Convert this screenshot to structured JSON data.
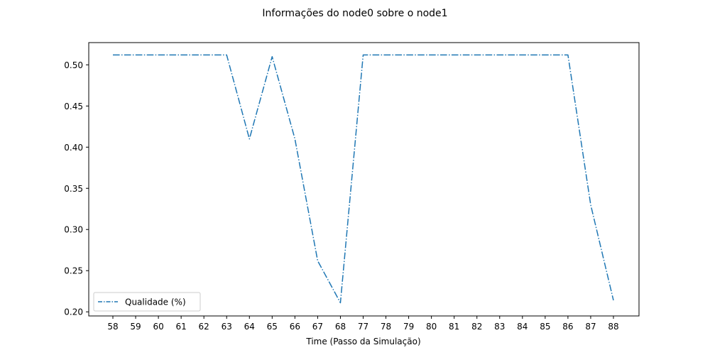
{
  "chart_data": {
    "type": "line",
    "title": "Informações do node0 sobre o node1",
    "xlabel": "Time (Passo da Simulação)",
    "ylabel": "",
    "categories": [
      "58",
      "59",
      "60",
      "61",
      "62",
      "63",
      "64",
      "65",
      "66",
      "67",
      "68",
      "77",
      "78",
      "79",
      "80",
      "81",
      "82",
      "83",
      "84",
      "85",
      "86",
      "87",
      "88"
    ],
    "series": [
      {
        "name": "Qualidade (%)",
        "color": "#1f77b4",
        "values": [
          0.512,
          0.512,
          0.512,
          0.512,
          0.512,
          0.512,
          0.41,
          0.51,
          0.41,
          0.262,
          0.211,
          0.512,
          0.512,
          0.512,
          0.512,
          0.512,
          0.512,
          0.512,
          0.512,
          0.512,
          0.512,
          0.33,
          0.214
        ]
      }
    ],
    "yticks": [
      "0.20",
      "0.25",
      "0.30",
      "0.35",
      "0.40",
      "0.45",
      "0.50"
    ],
    "ylim": [
      0.195,
      0.527
    ],
    "grid": false,
    "legend_position": "lower-left"
  }
}
